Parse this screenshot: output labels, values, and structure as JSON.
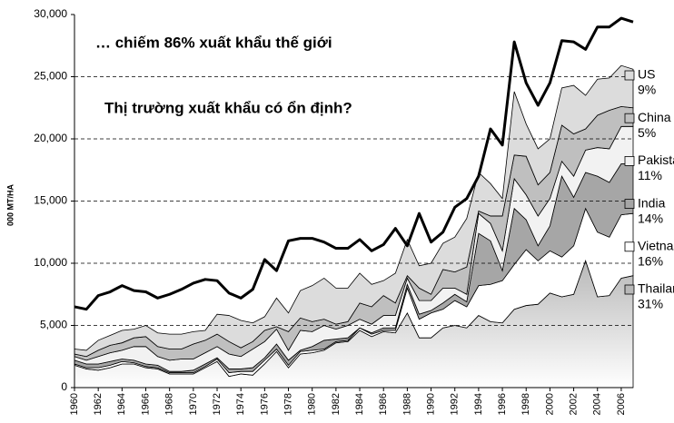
{
  "chart_data": {
    "type": "stacked_area",
    "annotations": [
      "… chiếm 86% xuất khẩu thế giới",
      "Thị trường xuất khẩu có ổn định?"
    ],
    "y_label": "000 MT/HA",
    "x": [
      1960,
      1961,
      1962,
      1963,
      1964,
      1965,
      1966,
      1967,
      1968,
      1969,
      1970,
      1971,
      1972,
      1973,
      1974,
      1975,
      1976,
      1977,
      1978,
      1979,
      1980,
      1981,
      1982,
      1983,
      1984,
      1985,
      1986,
      1987,
      1988,
      1989,
      1990,
      1991,
      1992,
      1993,
      1994,
      1995,
      1996,
      1997,
      1998,
      1999,
      2000,
      2001,
      2002,
      2003,
      2004,
      2005,
      2006,
      2007
    ],
    "xlim": [
      1960,
      2007
    ],
    "xticks": [
      1960,
      1962,
      1964,
      1966,
      1968,
      1970,
      1972,
      1974,
      1976,
      1978,
      1980,
      1982,
      1984,
      1986,
      1988,
      1990,
      1992,
      1994,
      1996,
      1998,
      2000,
      2002,
      2004,
      2006
    ],
    "ylim": [
      0,
      30000
    ],
    "yticks": [
      0,
      {
        "value": 5000,
        "label": "5,000"
      },
      {
        "value": 10000,
        "label": "10,000"
      },
      {
        "value": 15000,
        "label": "15,000"
      },
      {
        "value": 20000,
        "label": "20,000"
      },
      {
        "value": 25000,
        "label": "25,000"
      },
      {
        "value": 30000,
        "label": "30,000"
      }
    ],
    "grid": true,
    "series": [
      {
        "name": "Thailand",
        "share": 31,
        "share_label": "31%",
        "color": "#b8b8b8",
        "gradient": true,
        "values": [
          1800,
          1500,
          1400,
          1600,
          1900,
          1900,
          1600,
          1500,
          1100,
          1100,
          1100,
          1600,
          2100,
          900,
          1100,
          1000,
          1900,
          2900,
          1600,
          2700,
          2800,
          3000,
          3600,
          3700,
          4600,
          4100,
          4500,
          4400,
          6000,
          4000,
          4000,
          4800,
          5000,
          4800,
          5800,
          5300,
          5200,
          6300,
          6600,
          6700,
          7600,
          7300,
          7500,
          10200,
          7300,
          7400,
          8800,
          9000
        ]
      },
      {
        "name": "Vietnam",
        "share": 16,
        "share_label": "16%",
        "color": "#ffffff",
        "values": [
          100,
          100,
          200,
          200,
          200,
          100,
          100,
          100,
          100,
          100,
          100,
          100,
          200,
          300,
          200,
          300,
          300,
          200,
          200,
          200,
          200,
          100,
          100,
          100,
          200,
          200,
          100,
          200,
          2000,
          1500,
          2000,
          1500,
          2000,
          1700,
          2400,
          3000,
          3400,
          3600,
          4500,
          3500,
          3400,
          3200,
          3900,
          4200,
          5200,
          4700,
          5100,
          5000
        ]
      },
      {
        "name": "India",
        "share": 14,
        "share_label": "14%",
        "color": "#a6a6a6",
        "values": [
          300,
          300,
          300,
          300,
          200,
          200,
          200,
          200,
          100,
          100,
          200,
          200,
          100,
          300,
          200,
          300,
          200,
          400,
          400,
          100,
          300,
          700,
          200,
          200,
          0,
          100,
          200,
          200,
          300,
          400,
          200,
          500,
          500,
          400,
          4200,
          3500,
          800,
          4500,
          2400,
          1200,
          2000,
          6500,
          3900,
          2900,
          4500,
          4400,
          4100,
          4000
        ]
      },
      {
        "name": "Pakistan",
        "share": 11,
        "share_label": "11%",
        "color": "#f2f2f2",
        "values": [
          300,
          300,
          600,
          700,
          700,
          1100,
          1400,
          700,
          900,
          1000,
          900,
          900,
          900,
          1200,
          1000,
          1500,
          1300,
          1200,
          800,
          1600,
          1200,
          1200,
          800,
          1000,
          700,
          700,
          1000,
          1000,
          500,
          1100,
          800,
          1200,
          500,
          600,
          1600,
          1400,
          1600,
          2400,
          2000,
          2400,
          2200,
          1200,
          1700,
          1800,
          2300,
          2700,
          3000,
          3000
        ]
      },
      {
        "name": "China",
        "share": 5,
        "share_label": "5%",
        "color": "#bfbfbf",
        "values": [
          200,
          300,
          500,
          600,
          600,
          700,
          800,
          800,
          900,
          800,
          1200,
          1000,
          1000,
          1000,
          700,
          600,
          900,
          200,
          1500,
          1000,
          800,
          500,
          400,
          300,
          1300,
          1400,
          1600,
          1000,
          200,
          1000,
          500,
          1500,
          1300,
          2200,
          200,
          600,
          2800,
          1900,
          3100,
          2500,
          2100,
          2900,
          3400,
          1700,
          2600,
          3100,
          1600,
          1500
        ]
      },
      {
        "name": "US",
        "share": 9,
        "share_label": "9%",
        "color": "#dcdcdc",
        "values": [
          400,
          500,
          800,
          800,
          1000,
          700,
          900,
          1100,
          1200,
          1200,
          1000,
          800,
          1600,
          2100,
          2200,
          1500,
          1100,
          2300,
          1500,
          2200,
          2900,
          3300,
          2900,
          2700,
          2400,
          1800,
          1200,
          2400,
          2900,
          1800,
          2500,
          2100,
          2800,
          3900,
          3100,
          2600,
          1400,
          5100,
          2600,
          2900,
          2700,
          3000,
          3900,
          2700,
          2900,
          2600,
          3300,
          3100
        ]
      }
    ],
    "total_color": "#000000",
    "total": [
      6500,
      6300,
      7400,
      7700,
      8200,
      7800,
      7700,
      7200,
      7500,
      7900,
      8400,
      8700,
      8600,
      7600,
      7200,
      7900,
      10300,
      9400,
      11800,
      12000,
      12000,
      11700,
      11200,
      11200,
      11900,
      11000,
      11500,
      12800,
      11400,
      14000,
      11700,
      12500,
      14500,
      15200,
      17000,
      20800,
      19500,
      27800,
      24500,
      22700,
      24500,
      27900,
      27800,
      27200,
      29000,
      29000,
      29700,
      29400
    ]
  }
}
